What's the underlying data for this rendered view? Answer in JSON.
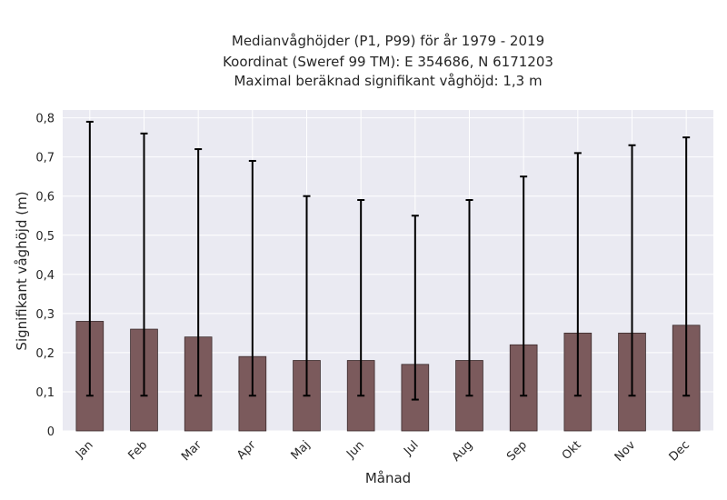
{
  "chart_data": {
    "type": "bar",
    "title_lines": [
      "Medianvåghöjder (P1, P99) för år 1979 - 2019",
      "Koordinat (Sweref 99 TM): E 354686, N 6171203",
      "Maximal beräknad signifikant våghöjd: 1,3 m"
    ],
    "xlabel": "Månad",
    "ylabel": "Signifikant våghöjd (m)",
    "categories": [
      "Jan",
      "Feb",
      "Mar",
      "Apr",
      "Maj",
      "Jun",
      "Jul",
      "Aug",
      "Sep",
      "Okt",
      "Nov",
      "Dec"
    ],
    "values": [
      0.28,
      0.26,
      0.24,
      0.19,
      0.18,
      0.18,
      0.17,
      0.18,
      0.22,
      0.25,
      0.25,
      0.27
    ],
    "error_low": [
      0.09,
      0.09,
      0.09,
      0.09,
      0.09,
      0.09,
      0.08,
      0.09,
      0.09,
      0.09,
      0.09,
      0.09
    ],
    "error_high": [
      0.79,
      0.76,
      0.72,
      0.69,
      0.6,
      0.59,
      0.55,
      0.59,
      0.65,
      0.71,
      0.73,
      0.75
    ],
    "ylim": [
      0,
      0.82
    ],
    "yticks": [
      0,
      0.1,
      0.2,
      0.3,
      0.4,
      0.5,
      0.6,
      0.7,
      0.8
    ],
    "ytick_labels": [
      "0",
      "0,1",
      "0,2",
      "0,3",
      "0,4",
      "0,5",
      "0,6",
      "0,7",
      "0,8"
    ],
    "grid": true,
    "colors": {
      "bar": "#7b5a5c",
      "bar_edge": "#3a2a2b",
      "background": "#eaeaf2",
      "grid": "#ffffff",
      "errorbar": "#000000"
    }
  }
}
